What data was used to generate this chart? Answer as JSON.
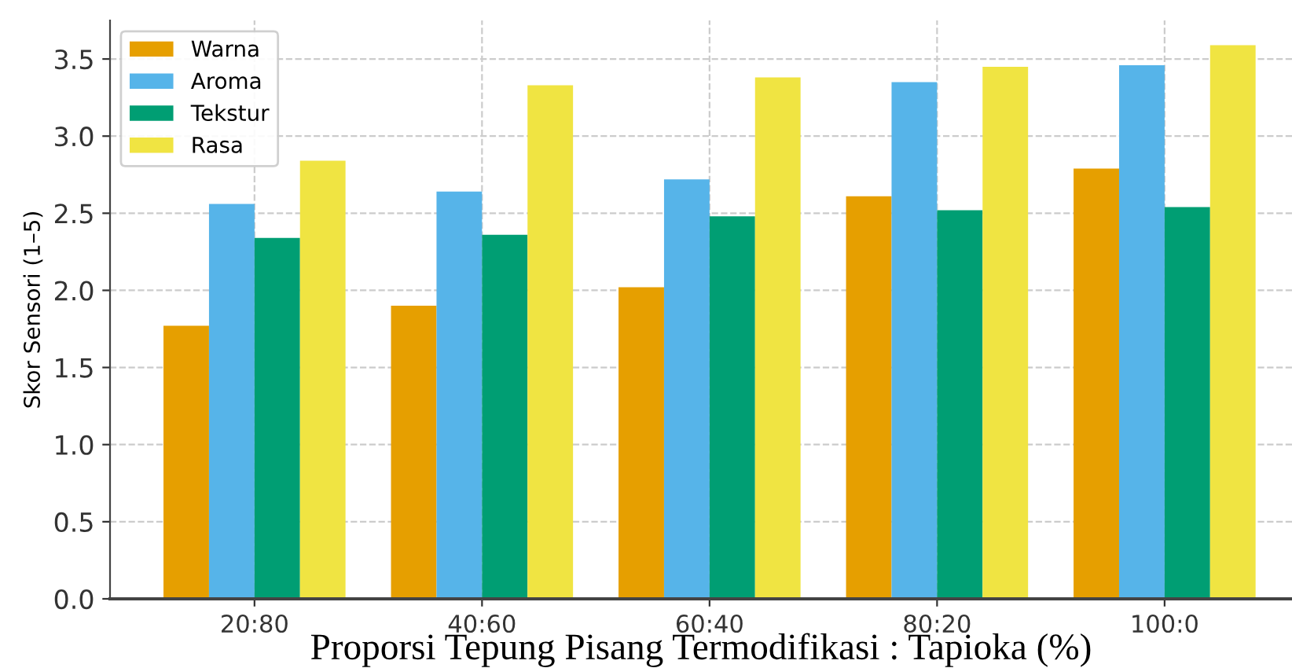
{
  "chart_data": {
    "type": "bar",
    "xlabel": "Proporsi Tepung Pisang Termodifikasi : Tapioka (%)",
    "ylabel": "Skor Sensori (1–5)",
    "categories": [
      "20:80",
      "40:60",
      "60:40",
      "80:20",
      "100:0"
    ],
    "series": [
      {
        "name": "Warna",
        "color": "#e69f00",
        "values": [
          1.77,
          1.9,
          2.02,
          2.61,
          2.79
        ]
      },
      {
        "name": "Aroma",
        "color": "#56b4e9",
        "values": [
          2.56,
          2.64,
          2.72,
          3.35,
          3.46
        ]
      },
      {
        "name": "Tekstur",
        "color": "#009e73",
        "values": [
          2.34,
          2.36,
          2.48,
          2.52,
          2.54
        ]
      },
      {
        "name": "Rasa",
        "color": "#f0e442",
        "values": [
          2.84,
          3.33,
          3.38,
          3.45,
          3.59
        ]
      }
    ],
    "ylim": [
      0,
      3.75
    ],
    "yticks": [
      {
        "value": 0,
        "label": "0.0"
      },
      {
        "value": 0.5,
        "label": "0.5"
      },
      {
        "value": 1,
        "label": "1.0"
      },
      {
        "value": 1.5,
        "label": "1.5"
      },
      {
        "value": 2,
        "label": "2.0"
      },
      {
        "value": 2.5,
        "label": "2.5"
      },
      {
        "value": 3,
        "label": "3.0"
      },
      {
        "value": 3.5,
        "label": "3.5"
      }
    ],
    "grid": true,
    "legend": "top left"
  }
}
